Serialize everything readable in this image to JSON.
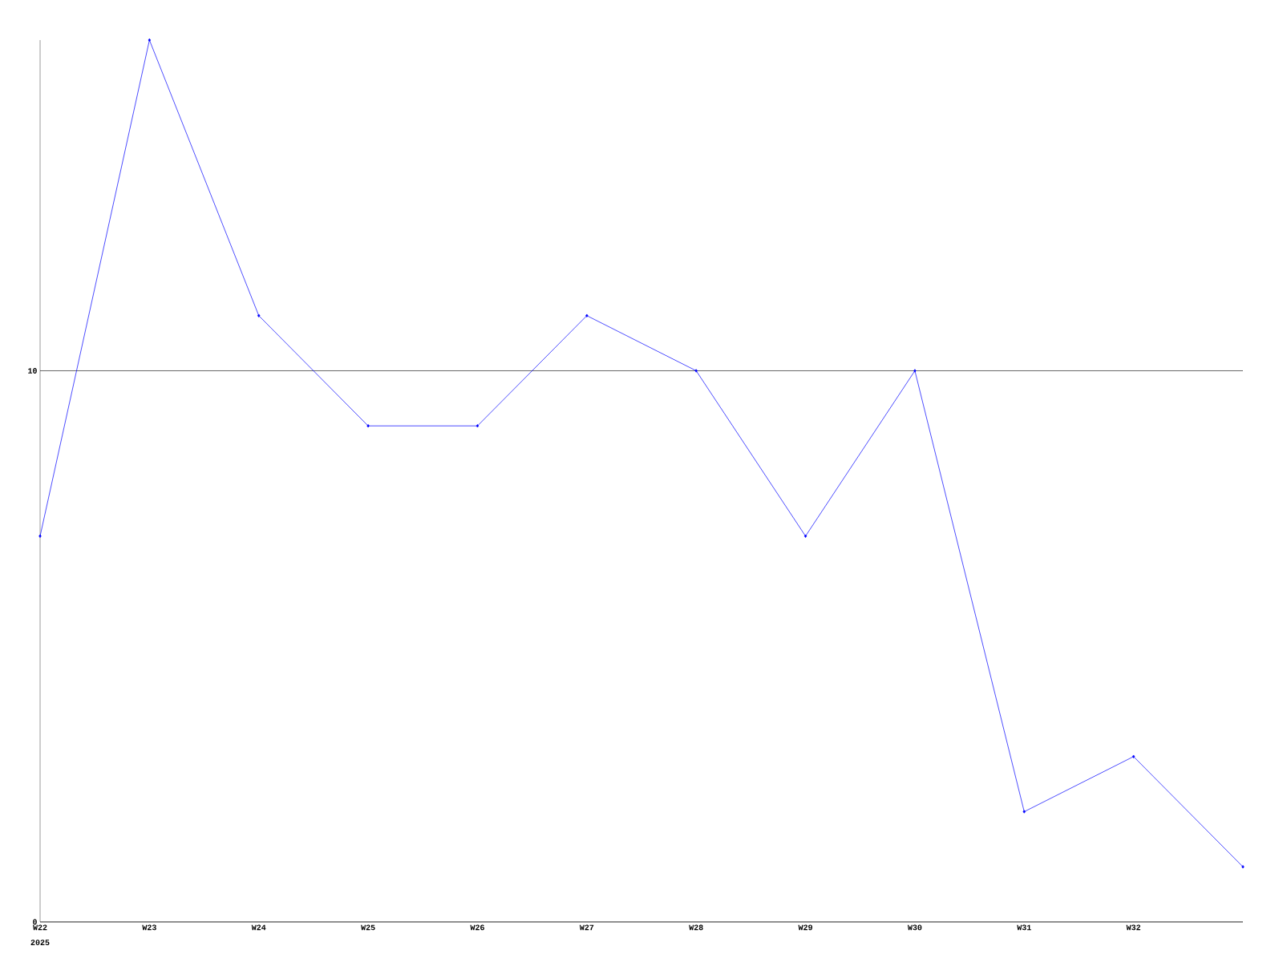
{
  "chart_data": {
    "type": "line",
    "categories": [
      "W22",
      "W23",
      "W24",
      "W25",
      "W26",
      "W27",
      "W28",
      "W29",
      "W30",
      "W31",
      "W32",
      null
    ],
    "series": [
      {
        "color": "#0000ff",
        "values": [
          7,
          16,
          11,
          9,
          9,
          11,
          10,
          7,
          10,
          2,
          3,
          1
        ]
      }
    ],
    "ylim": [
      0,
      16
    ],
    "yticks": [
      0,
      10
    ],
    "grid": "y",
    "marker": "diamond",
    "line_style": "solid",
    "annotations": [
      "2025"
    ]
  }
}
